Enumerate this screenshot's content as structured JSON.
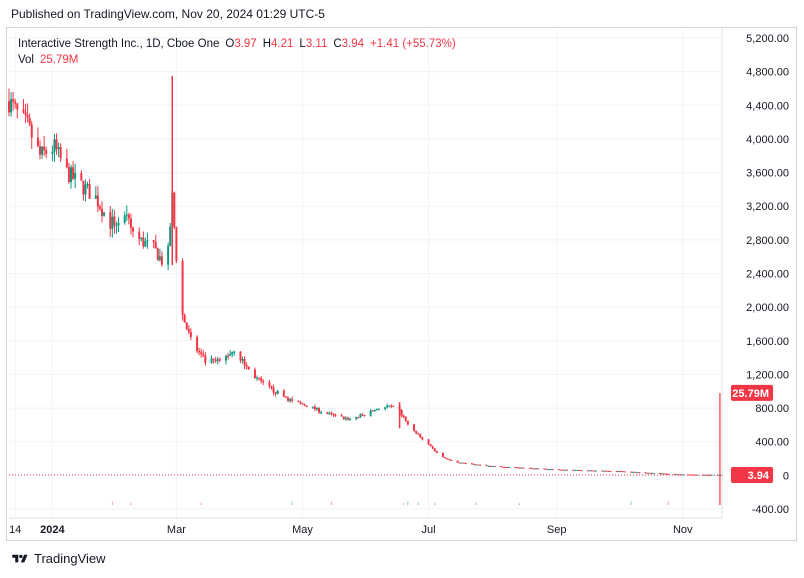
{
  "header": {
    "published": "Published on TradingView.com, Nov 20, 2024 01:29 UTC-5"
  },
  "legend": {
    "symbol": "Interactive Strength Inc., 1D, Cboe One",
    "o_label": "O",
    "o_value": "3.97",
    "h_label": "H",
    "h_value": "4.21",
    "l_label": "L",
    "l_value": "3.11",
    "c_label": "C",
    "c_value": "3.94",
    "change": "+1.41 (+55.73%)",
    "vol_label": "Vol",
    "vol_value": "25.79M"
  },
  "footer": {
    "brand": "TradingView"
  },
  "colors": {
    "up": "#089981",
    "down": "#f23645",
    "grid": "#f0f3fa",
    "axis_text": "#131722"
  },
  "chart_data": {
    "type": "candlestick",
    "ylim": [
      -500,
      5300
    ],
    "yticks": [
      5200,
      4800,
      4400,
      4000,
      3600,
      3200,
      2800,
      2400,
      2000,
      1600,
      1200,
      800,
      400,
      0,
      -400
    ],
    "ytick_labels": [
      "5,200.00",
      "4,800.00",
      "4,400.00",
      "4,000.00",
      "3,600.00",
      "3,200.00",
      "2,800.00",
      "2,400.00",
      "2,000.00",
      "1,600.00",
      "1,200.00",
      "800.00",
      "400.00",
      "0",
      "-400.00"
    ],
    "x_range": [
      "2023-12-11",
      "2024-11-20"
    ],
    "xticks": [
      {
        "date": "2023-12-14",
        "label": "14"
      },
      {
        "date": "2024-01-01",
        "label": "2024"
      },
      {
        "date": "2024-03-01",
        "label": "Mar"
      },
      {
        "date": "2024-05-01",
        "label": "May"
      },
      {
        "date": "2024-07-01",
        "label": "Jul"
      },
      {
        "date": "2024-09-01",
        "label": "Sep"
      },
      {
        "date": "2024-11-01",
        "label": "Nov"
      }
    ],
    "last_price": 3.94,
    "last_price_label": "3.94",
    "volume_badge": "25.79M",
    "volume_spike": {
      "date": "2024-11-19",
      "value_in_price_units": 980
    },
    "price_path": [
      [
        "2023-12-11",
        4450
      ],
      [
        "2023-12-15",
        4300
      ],
      [
        "2023-12-20",
        4150
      ],
      [
        "2023-12-26",
        3800
      ],
      [
        "2024-01-02",
        3900
      ],
      [
        "2024-01-08",
        3600
      ],
      [
        "2024-01-15",
        3450
      ],
      [
        "2024-01-22",
        3300
      ],
      [
        "2024-01-29",
        3000
      ],
      [
        "2024-02-05",
        3050
      ],
      [
        "2024-02-12",
        2800
      ],
      [
        "2024-02-19",
        2700
      ],
      [
        "2024-02-23",
        2550
      ],
      [
        "2024-02-26",
        2650
      ],
      [
        "2024-02-28",
        3300
      ],
      [
        "2024-03-01",
        2600
      ],
      [
        "2024-03-04",
        1900
      ],
      [
        "2024-03-08",
        1600
      ],
      [
        "2024-03-15",
        1350
      ],
      [
        "2024-03-22",
        1350
      ],
      [
        "2024-03-29",
        1500
      ],
      [
        "2024-04-05",
        1250
      ],
      [
        "2024-04-12",
        1080
      ],
      [
        "2024-04-19",
        980
      ],
      [
        "2024-04-26",
        880
      ],
      [
        "2024-05-03",
        830
      ],
      [
        "2024-05-10",
        760
      ],
      [
        "2024-05-17",
        700
      ],
      [
        "2024-05-24",
        670
      ],
      [
        "2024-05-31",
        720
      ],
      [
        "2024-06-07",
        800
      ],
      [
        "2024-06-12",
        820
      ],
      [
        "2024-06-17",
        760
      ],
      [
        "2024-06-21",
        600
      ],
      [
        "2024-06-26",
        480
      ],
      [
        "2024-07-01",
        380
      ],
      [
        "2024-07-05",
        260
      ],
      [
        "2024-07-12",
        170
      ],
      [
        "2024-07-19",
        140
      ],
      [
        "2024-07-31",
        110
      ],
      [
        "2024-08-15",
        90
      ],
      [
        "2024-09-01",
        70
      ],
      [
        "2024-09-15",
        60
      ],
      [
        "2024-10-01",
        50
      ],
      [
        "2024-10-15",
        30
      ],
      [
        "2024-11-01",
        10
      ],
      [
        "2024-11-19",
        3.94
      ]
    ],
    "spikes": [
      {
        "date": "2024-02-28",
        "high": 4750,
        "low": 2500
      },
      {
        "date": "2024-06-17",
        "high": 870,
        "low": 560
      }
    ]
  }
}
